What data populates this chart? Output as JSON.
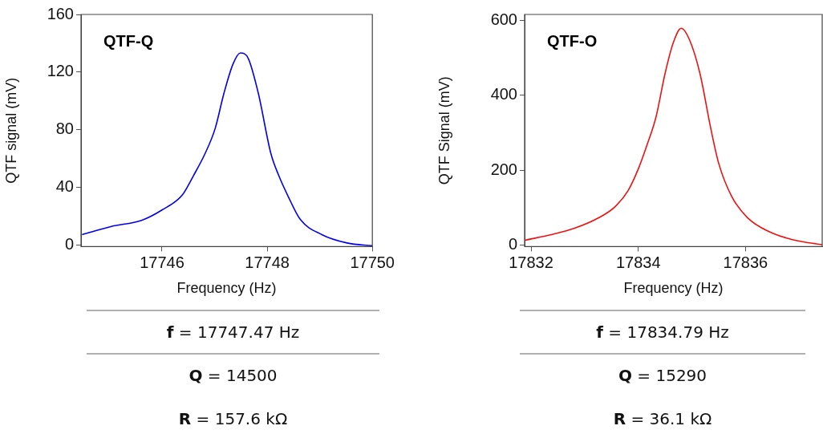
{
  "chart_data": [
    {
      "type": "line",
      "title": "QTF-Q",
      "xlabel": "Frequency (Hz)",
      "ylabel": "QTF signal (mV)",
      "xlim": [
        17744.46,
        17750
      ],
      "xticks": [
        17746,
        17748,
        17750
      ],
      "ylim": [
        -1,
        160
      ],
      "yticks": [
        0,
        40,
        80,
        120,
        160
      ],
      "marker": "none",
      "line_style": "solid",
      "x": [
        17744.48,
        17745.04,
        17745.61,
        17746.0,
        17746.39,
        17746.6,
        17746.82,
        17747.01,
        17747.18,
        17747.35,
        17747.49,
        17747.64,
        17747.83,
        17748.07,
        17748.22,
        17748.41,
        17748.63,
        17749.04,
        17749.52,
        17750.0
      ],
      "series": [
        {
          "color": "#0000ee",
          "values": [
            7.3,
            13,
            17.2,
            24.4,
            35,
            48.3,
            63.6,
            80.8,
            105.6,
            125.6,
            133.3,
            129.5,
            105.6,
            63.6,
            48.3,
            33,
            17.8,
            7.3,
            1.5,
            -0.4
          ]
        }
      ],
      "annotations": [
        "f = 17747.47 Hz",
        "Q = 14500",
        "R = 157.6 kΩ"
      ]
    },
    {
      "type": "line",
      "title": "QTF-O",
      "xlabel": "Frequency (Hz)",
      "ylabel": "QTF Signal (mV)",
      "xlim": [
        17831.88,
        17837.43
      ],
      "xticks": [
        17832,
        17834,
        17836
      ],
      "ylim": [
        -5,
        617
      ],
      "yticks": [
        0,
        200,
        400,
        600
      ],
      "marker": "none",
      "line_style": "solid",
      "x": [
        17831.88,
        17832.41,
        17832.81,
        17833.26,
        17833.56,
        17833.81,
        17834.0,
        17834.15,
        17834.33,
        17834.5,
        17834.65,
        17834.8,
        17834.95,
        17835.15,
        17835.35,
        17835.5,
        17835.74,
        17836.04,
        17836.44,
        17836.89,
        17837.43
      ],
      "series": [
        {
          "color": "#ee1111",
          "values": [
            12,
            28,
            44,
            72,
            101,
            145,
            203,
            262,
            342,
            459,
            540,
            580,
            551,
            459,
            313,
            218,
            130,
            72,
            35,
            13,
            0
          ]
        }
      ],
      "annotations": [
        "f = 17834.79 Hz",
        "Q = 15290",
        "R = 36.1 kΩ"
      ]
    }
  ]
}
